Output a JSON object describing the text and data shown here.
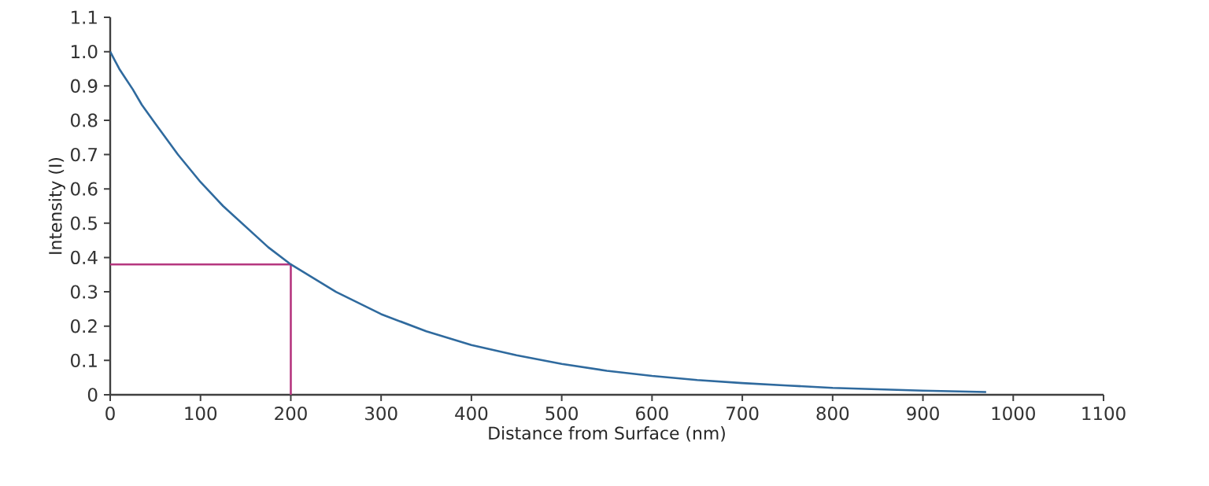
{
  "chart_data": {
    "type": "line",
    "xlabel": "Distance from Surface (nm)",
    "ylabel": "Intensity (I)",
    "xlim": [
      0,
      1100
    ],
    "xticks": [
      0,
      100,
      200,
      300,
      400,
      500,
      600,
      700,
      800,
      900,
      1000,
      1100
    ],
    "ylim": [
      0,
      1.1
    ],
    "yticks": [
      0,
      0.1,
      0.2,
      0.3,
      0.4,
      0.5,
      0.6,
      0.7,
      0.8,
      0.9,
      {
        "value": 1,
        "label": "1.0"
      },
      1.1
    ],
    "grid": false,
    "marker": "none",
    "line_style": "solid",
    "series": [
      {
        "color": "#2f6a9e",
        "x": [
          0,
          5,
          10,
          15,
          25,
          35,
          50,
          75,
          100,
          125,
          150,
          175,
          200,
          250,
          300,
          350,
          400,
          450,
          500,
          550,
          600,
          650,
          700,
          750,
          800,
          850,
          900,
          970
        ],
        "values": [
          1.0,
          0.975,
          0.95,
          0.93,
          0.89,
          0.845,
          0.79,
          0.7,
          0.62,
          0.55,
          0.49,
          0.43,
          0.38,
          0.3,
          0.235,
          0.185,
          0.145,
          0.115,
          0.09,
          0.07,
          0.055,
          0.043,
          0.034,
          0.027,
          0.02,
          0.016,
          0.012,
          0.008
        ]
      },
      {
        "color": "#b5367f",
        "x": [
          0,
          200,
          200
        ],
        "values": [
          0.38,
          0.38,
          0
        ]
      }
    ]
  }
}
